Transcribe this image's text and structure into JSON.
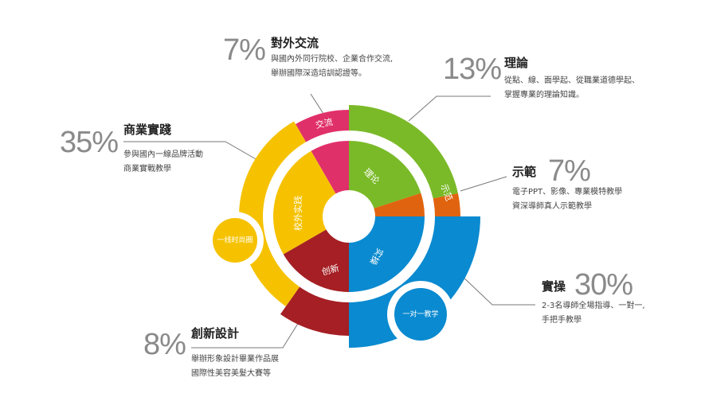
{
  "segments": [
    {
      "key": "exchange",
      "percent": "7%",
      "title": "對外交流",
      "desc": [
        "與國內外同行院校、企業合作交流,",
        "舉辦國際深造培訓認證等。"
      ],
      "ring_label": "交流",
      "color": "#e0306a"
    },
    {
      "key": "theory",
      "percent": "13%",
      "title": "理論",
      "desc": [
        "從點、線、面學起、從職業道德學起、",
        "掌握專業的理論知識。"
      ],
      "ring_label": "理论",
      "color": "#7aba28"
    },
    {
      "key": "demo",
      "percent": "7%",
      "title": "示範",
      "desc": [
        "電子PPT、影像、專業模特教學",
        "資深導師真人示範教學"
      ],
      "ring_label": "示范",
      "color": "#e0640f"
    },
    {
      "key": "practice",
      "percent": "30%",
      "title": "實操",
      "desc": [
        "2-3名導師全場指導、一對一,",
        "手把手教學"
      ],
      "ring_label": "实操",
      "color": "#0a8ad0"
    },
    {
      "key": "creative",
      "percent": "8%",
      "title": "創新設計",
      "desc": [
        "舉辦形象設計畢業作品展",
        "國際性美容美髮大賽等"
      ],
      "ring_label": "创新",
      "color": "#a51f24"
    },
    {
      "key": "business",
      "percent": "35%",
      "title": "商業實踐",
      "desc": [
        "參與國內一線品牌活動",
        "商業實戰教學"
      ],
      "ring_label": "校外实践",
      "color": "#f6c200"
    }
  ],
  "bubbles": {
    "fashion": "一线时尚圈",
    "one_on_one": "一对一教学"
  }
}
